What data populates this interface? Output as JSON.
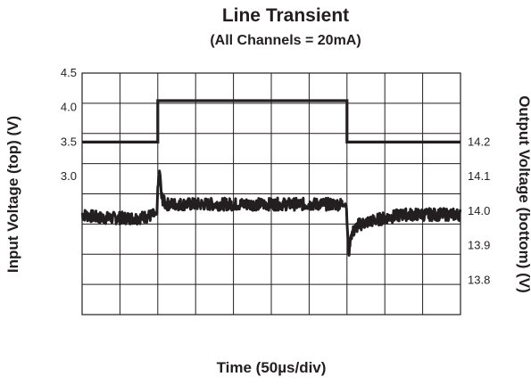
{
  "chart_data": {
    "type": "line",
    "title": "Line Transient",
    "subtitle": "(All Channels = 20mA)",
    "xlabel": "Time (50µs/div)",
    "ylabel_left": "Input Voltage (top) (V)",
    "ylabel_right": "Output Voltage (bottom) (V)",
    "grid": true,
    "x_divisions": 10,
    "left_axis": {
      "range": [
        1.0,
        4.5
      ],
      "ticks": [
        "4.5",
        "4.0",
        "3.5",
        "3.0"
      ],
      "tick_values": [
        4.5,
        4.0,
        3.5,
        3.0
      ]
    },
    "right_axis": {
      "range": [
        13.7,
        14.4
      ],
      "ticks": [
        "14.2",
        "14.1",
        "14.0",
        "13.9",
        "13.8"
      ],
      "tick_values": [
        14.2,
        14.1,
        14.0,
        13.9,
        13.8
      ]
    },
    "series": [
      {
        "axis": "left",
        "x": [
          0,
          2.0,
          2.0,
          7.0,
          7.0,
          10
        ],
        "y": [
          3.5,
          3.5,
          4.1,
          4.1,
          3.5,
          3.5
        ]
      },
      {
        "axis": "right",
        "x": [
          0,
          0.5,
          1.0,
          1.5,
          1.98,
          2.0,
          2.05,
          2.1,
          2.2,
          3.0,
          4.0,
          5.0,
          6.0,
          6.98,
          7.0,
          7.05,
          7.1,
          7.3,
          7.6,
          8.0,
          8.5,
          9.0,
          9.5,
          10
        ],
        "y": [
          13.99,
          13.98,
          13.98,
          13.98,
          13.99,
          14.07,
          14.12,
          14.04,
          14.02,
          14.02,
          14.02,
          14.02,
          14.02,
          14.02,
          13.97,
          13.87,
          13.93,
          13.96,
          13.97,
          13.98,
          13.99,
          13.99,
          13.99,
          13.99
        ],
        "noise_band": 0.018
      }
    ]
  }
}
